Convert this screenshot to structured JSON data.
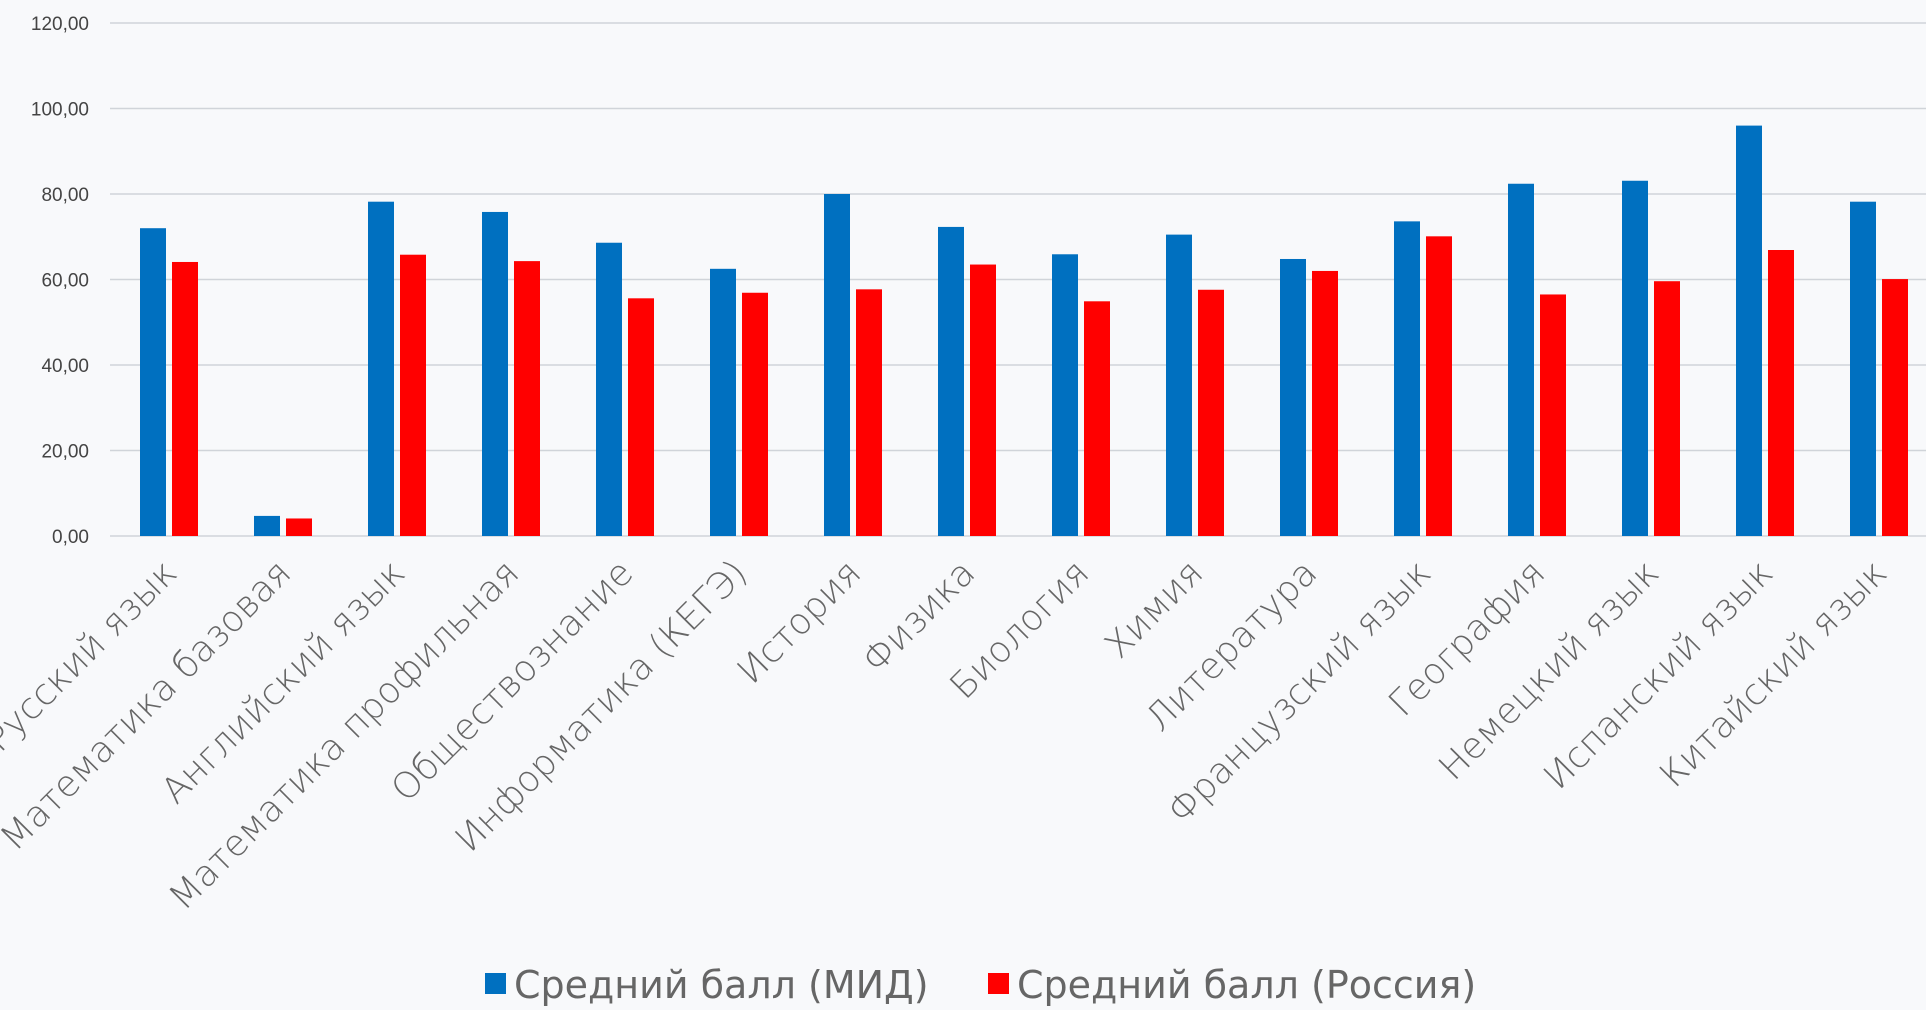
{
  "chart_data": {
    "type": "bar",
    "title": "",
    "xlabel": "",
    "ylabel": "",
    "ylim": [
      0,
      120
    ],
    "yticks": [
      "0,00",
      "20,00",
      "40,00",
      "60,00",
      "80,00",
      "100,00",
      "120,00"
    ],
    "grid": true,
    "legend_position": "bottom",
    "categories": [
      "Русский язык",
      "Математика базовая",
      "Английский язык",
      "Математика профильная",
      "Обществознание",
      "Информатика (КЕГЭ)",
      "История",
      "Физика",
      "Биология",
      "Химия",
      "Литература",
      "Французский язык",
      "География",
      "Немецкий язык",
      "Испанский язык",
      "Китайский язык"
    ],
    "series": [
      {
        "name": "Средний балл (МИД)",
        "color": "#0070c0",
        "values": [
          72,
          4.7,
          78.2,
          75.8,
          68.6,
          62.5,
          80,
          72.3,
          65.9,
          70.5,
          64.8,
          73.6,
          82.4,
          83.1,
          96,
          78.2
        ]
      },
      {
        "name": "Средний балл (Россия)",
        "color": "#ff0000",
        "values": [
          64.1,
          4.1,
          65.8,
          64.3,
          55.6,
          56.9,
          57.7,
          63.5,
          54.9,
          57.6,
          62,
          70.1,
          56.5,
          59.6,
          66.9,
          60.1
        ]
      }
    ]
  }
}
